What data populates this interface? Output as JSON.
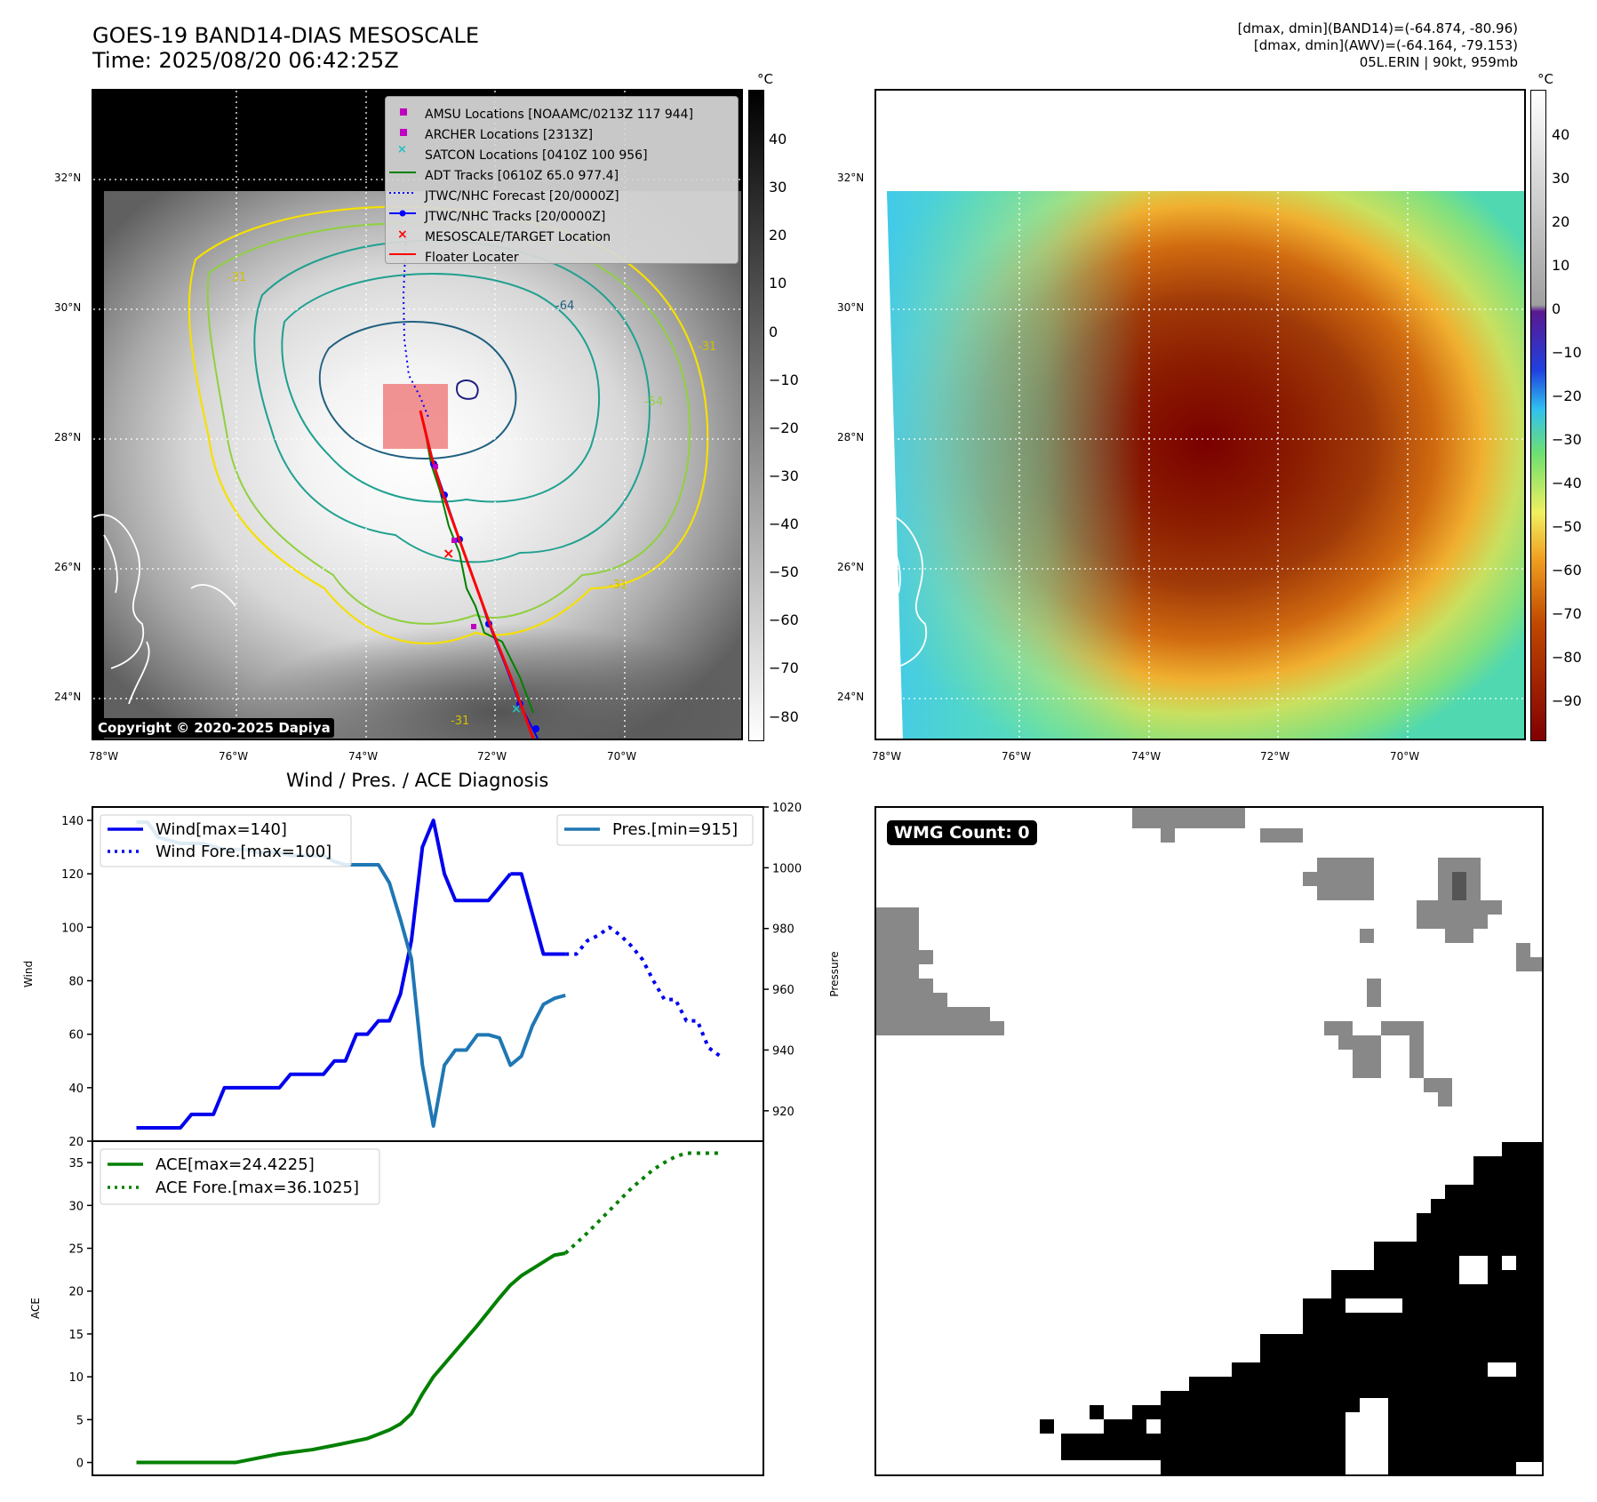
{
  "header": {
    "title_line1": "GOES-19 BAND14-DIAS MESOSCALE",
    "title_line2": "Time: 2025/08/20 06:42:25Z",
    "info_line1": "[dmax, dmin](BAND14)=(-64.874, -80.96)",
    "info_line2": "[dmax, dmin](AWV)=(-64.164, -79.153)",
    "info_line3": "05L.ERIN | 90kt, 959mb"
  },
  "map_axes": {
    "lat_labels": [
      "32°N",
      "30°N",
      "28°N",
      "26°N",
      "24°N"
    ],
    "lon_labels": [
      "78°W",
      "76°W",
      "74°W",
      "72°W",
      "70°W"
    ]
  },
  "colorbar_left": {
    "unit": "°C",
    "ticks": [
      "40",
      "30",
      "20",
      "10",
      "0",
      "−10",
      "−20",
      "−30",
      "−40",
      "−50",
      "−60",
      "−70",
      "−80"
    ]
  },
  "colorbar_right": {
    "unit": "°C",
    "ticks": [
      "40",
      "30",
      "20",
      "10",
      "0",
      "−10",
      "−20",
      "−30",
      "−40",
      "−50",
      "−60",
      "−70",
      "−80",
      "−90"
    ]
  },
  "legend": {
    "items": [
      {
        "label": "AMSU Locations [NOAAMC/0213Z 117 944]",
        "color": "#c000c0"
      },
      {
        "label": "ARCHER Locations [2313Z]",
        "color": "#c000c0"
      },
      {
        "label": "SATCON Locations [0410Z 100 956]",
        "color": "#20c0c0"
      },
      {
        "label": "ADT Tracks [0610Z 65.0 977.4]",
        "color": "#008000"
      },
      {
        "label": "JTWC/NHC Forecast [20/0000Z]",
        "color": "#0000ff"
      },
      {
        "label": "JTWC/NHC Tracks [20/0000Z]",
        "color": "#0000ff"
      },
      {
        "label": "MESOSCALE/TARGET Location",
        "color": "#ff0000"
      },
      {
        "label": "Floater Locater",
        "color": "#ff0000"
      }
    ]
  },
  "contour_labels": [
    "-31",
    "-64",
    "-31",
    "-54",
    "-31",
    "-31"
  ],
  "copyright": "Copyright © 2020-2025 Dapiya",
  "wmg": {
    "label": "WMG Count: 0"
  },
  "colors": {
    "wind": "#0000ee",
    "pressure": "#1f77b4",
    "ace": "#008000",
    "mesoscale_box": "#f08080"
  },
  "chart_data": [
    {
      "type": "line",
      "title": "Wind / Pres. / ACE Diagnosis",
      "ylabel": "Wind",
      "ylabel_right": "Pressure",
      "ylim": [
        20,
        145
      ],
      "ylim_right": [
        910,
        1020
      ],
      "yticks": [
        20,
        40,
        60,
        80,
        100,
        120,
        140
      ],
      "yticks_right": [
        920,
        940,
        960,
        980,
        1000,
        1020
      ],
      "series": [
        {
          "name": "Wind[max=140]",
          "style": "solid",
          "axis": "left",
          "x": [
            0,
            1,
            2,
            3,
            4,
            5,
            6,
            7,
            8,
            9,
            10,
            11,
            12,
            13,
            14,
            15,
            16,
            17,
            18,
            19,
            20,
            21,
            22,
            23,
            24,
            25,
            26,
            27,
            28,
            29,
            30,
            31,
            32,
            33,
            34
          ],
          "values": [
            25,
            25,
            25,
            25,
            25,
            30,
            30,
            30,
            40,
            40,
            40,
            40,
            40,
            40,
            45,
            45,
            45,
            45,
            50,
            50,
            60,
            60,
            65,
            65,
            75,
            95,
            130,
            140,
            120,
            110,
            110,
            110,
            110,
            115,
            120
          ]
        },
        {
          "name": "",
          "style": "solid",
          "axis": "left",
          "x": [
            34,
            35,
            36,
            37,
            38,
            39
          ],
          "values": [
            120,
            120,
            105,
            90,
            90,
            90
          ]
        },
        {
          "name": "Wind Fore.[max=100]",
          "style": "dotted",
          "axis": "left",
          "x": [
            39,
            40,
            41,
            42,
            43,
            44,
            45,
            46,
            47,
            48,
            49,
            50,
            51,
            52,
            53
          ],
          "values": [
            90,
            90,
            95,
            97,
            100,
            97,
            93,
            88,
            80,
            73,
            73,
            65,
            65,
            55,
            52
          ]
        },
        {
          "name": "Pres.[min=915]",
          "style": "solid",
          "axis": "right",
          "x": [
            0,
            1,
            2,
            3,
            4,
            5,
            6,
            7,
            8,
            9,
            10,
            11,
            12,
            13,
            14,
            15,
            16,
            17,
            18,
            19,
            20,
            21,
            22,
            23,
            24,
            25,
            26,
            27,
            28,
            29,
            30,
            31,
            32,
            33,
            34,
            35,
            36,
            37,
            38,
            39
          ],
          "values": [
            1015,
            1015,
            1010,
            1009,
            1008,
            1008,
            1008,
            1007,
            1006,
            1006,
            1006,
            1005,
            1005,
            1005,
            1004,
            1004,
            1004,
            1004,
            1002,
            1001,
            1001,
            1001,
            1001,
            995,
            983,
            970,
            935,
            915,
            935,
            940,
            940,
            945,
            945,
            944,
            935,
            938,
            948,
            955,
            957,
            958
          ]
        }
      ]
    },
    {
      "type": "line",
      "ylabel": "ACE",
      "ylim": [
        -1.5,
        37.5
      ],
      "yticks": [
        0,
        5,
        10,
        15,
        20,
        25,
        30,
        35
      ],
      "series": [
        {
          "name": "ACE[max=24.4225]",
          "style": "solid",
          "x": [
            0,
            3,
            6,
            9,
            11,
            13,
            16,
            18,
            21,
            22,
            23,
            24,
            25,
            26,
            27,
            28,
            29,
            30,
            31,
            32,
            33,
            34,
            35,
            36,
            37,
            38,
            39
          ],
          "values": [
            0,
            0,
            0,
            0,
            0.5,
            1,
            1.5,
            2,
            2.8,
            3.3,
            3.8,
            4.5,
            5.7,
            8,
            10,
            11.5,
            13,
            14.5,
            16,
            17.6,
            19.2,
            20.7,
            21.8,
            22.6,
            23.4,
            24.2,
            24.42
          ]
        },
        {
          "name": "ACE Fore.[max=36.1025]",
          "style": "dotted",
          "x": [
            39,
            40,
            41,
            42,
            43,
            44,
            45,
            46,
            47,
            48,
            49,
            50,
            51,
            52,
            53
          ],
          "values": [
            24.42,
            25.6,
            26.8,
            28.1,
            29.4,
            30.7,
            32,
            33.1,
            34.2,
            35,
            35.7,
            36.1,
            36.1,
            36.1,
            36.1
          ]
        }
      ]
    }
  ]
}
